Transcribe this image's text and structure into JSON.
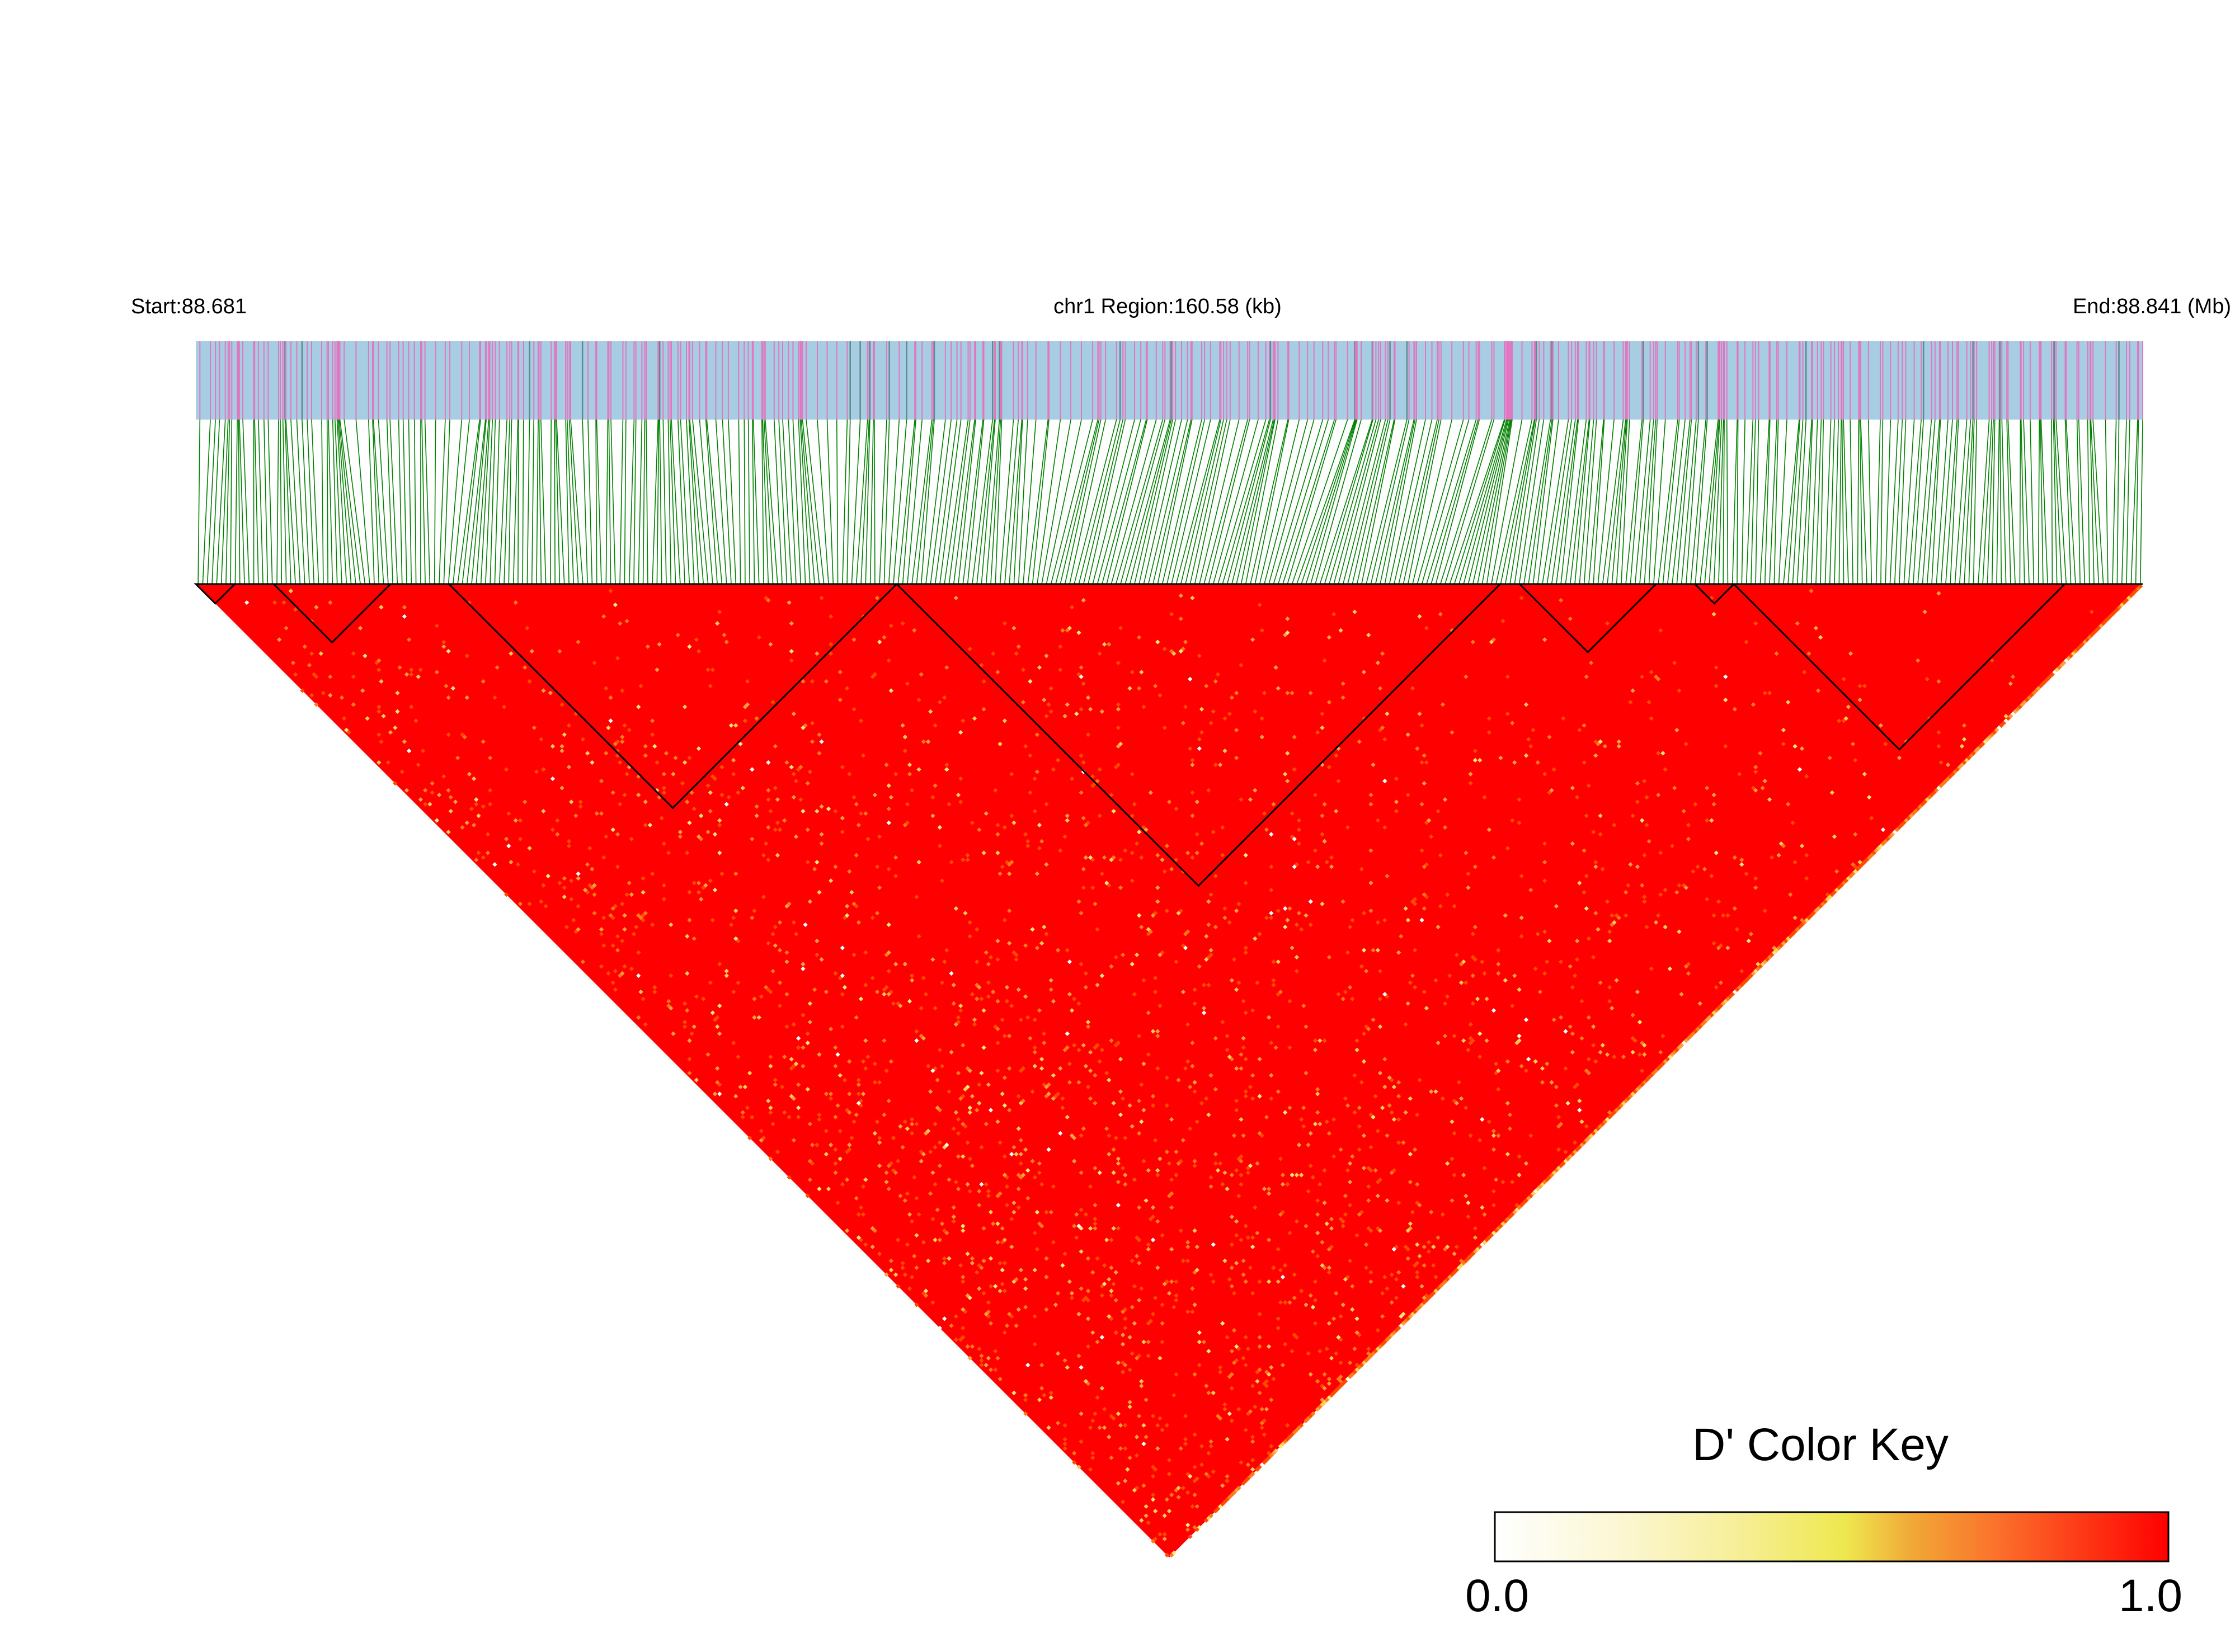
{
  "header": {
    "start_label": "Start:88.681",
    "region_label": "chr1 Region:160.58 (kb)",
    "end_label": "End:88.841 (Mb)"
  },
  "color_key": {
    "title": "D' Color Key",
    "min_label": "0.0",
    "max_label": "1.0",
    "colors": [
      "#ffffff",
      "#fbf6cf",
      "#f7ef9c",
      "#eee84f",
      "#f1a836",
      "#fb6f2b",
      "#ff0000"
    ]
  },
  "colors": {
    "track_background": "#a6cde2",
    "track_marker": "#e177c2",
    "track_marker_dark": "#5f8a8d",
    "connector": "#008000",
    "ld_high": "#ff0000",
    "ld_mid": "#ff7f00",
    "ld_low": "#ffd966"
  },
  "chart_data": {
    "type": "heatmap",
    "subtype": "linkage-disequilibrium-triangle",
    "metric": "D'",
    "chromosome": "chr1",
    "region_start_mb": 88.681,
    "region_end_mb": 88.841,
    "region_length_kb": 160.58,
    "value_range": [
      0.0,
      1.0
    ],
    "snp_count_estimate": 420,
    "haplotype_block_fractions": [
      [
        0.0,
        0.02
      ],
      [
        0.04,
        0.1
      ],
      [
        0.13,
        0.36
      ],
      [
        0.36,
        0.67
      ],
      [
        0.68,
        0.75
      ],
      [
        0.77,
        0.79
      ],
      [
        0.79,
        0.96
      ]
    ]
  }
}
